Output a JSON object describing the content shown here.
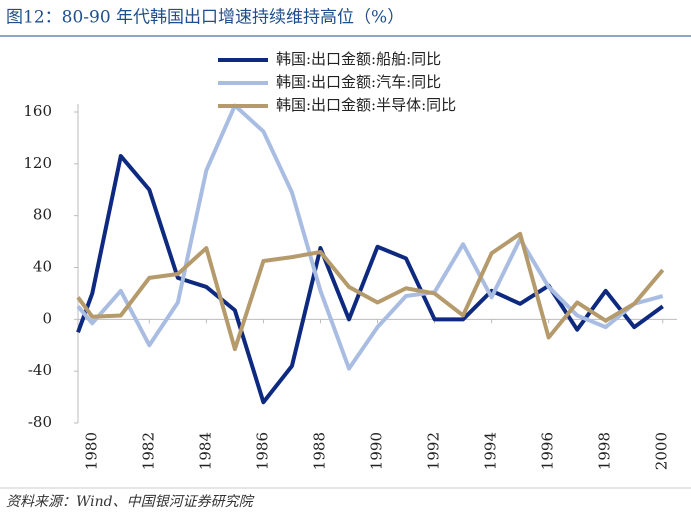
{
  "chart_data": {
    "type": "line",
    "title": "图12：80-90 年代韩国出口增速持续维持高位（%）",
    "source": "资料来源：Wind、中国银河证券研究院",
    "x": [
      1979.5,
      1980,
      1981,
      1982,
      1983,
      1984,
      1985,
      1986,
      1987,
      1988,
      1989,
      1990,
      1991,
      1992,
      1993,
      1994,
      1995,
      1996,
      1997,
      1998,
      1999,
      2000
    ],
    "xlim": [
      1979.5,
      2000.5
    ],
    "xticks": [
      1980,
      1982,
      1984,
      1986,
      1988,
      1990,
      1992,
      1994,
      1996,
      1998,
      2000
    ],
    "ylim": [
      -80,
      160
    ],
    "yticks": [
      -80,
      -40,
      0,
      40,
      80,
      120,
      160
    ],
    "series": [
      {
        "name": "韩国:出口金额:船舶:同比",
        "color": "#0d2a80",
        "values": [
          -10,
          20,
          126,
          100,
          32,
          25,
          7,
          -64,
          -36,
          55,
          0,
          56,
          47,
          0,
          0,
          22,
          12,
          26,
          -8,
          22,
          -6,
          10
        ]
      },
      {
        "name": "韩国:出口金额:汽车:同比",
        "color": "#a9bde3",
        "values": [
          10,
          -3,
          22,
          -20,
          13,
          115,
          165,
          145,
          98,
          22,
          -38,
          -6,
          18,
          21,
          58,
          17,
          62,
          25,
          3,
          -6,
          12,
          18
        ]
      },
      {
        "name": "韩国:出口金额:半导体:同比",
        "color": "#b59a6b",
        "values": [
          17,
          2,
          3,
          32,
          35,
          55,
          -23,
          45,
          48,
          52,
          25,
          13,
          24,
          20,
          3,
          51,
          66,
          -14,
          13,
          -1,
          12,
          38
        ]
      }
    ],
    "legend": "top"
  }
}
